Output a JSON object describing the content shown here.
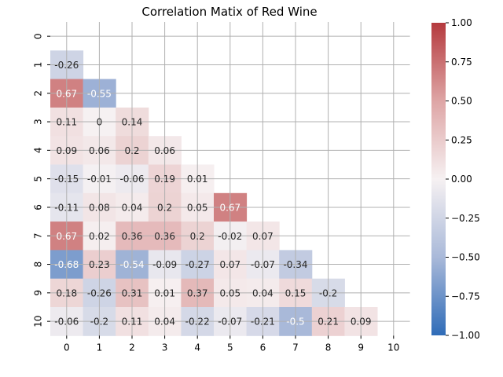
{
  "chart_data": {
    "type": "heatmap",
    "title": "Correlation Matix of Red Wine",
    "xlabel": "",
    "ylabel": "",
    "x_labels": [
      "0",
      "1",
      "2",
      "3",
      "4",
      "5",
      "6",
      "7",
      "8",
      "9",
      "10"
    ],
    "y_labels": [
      "0",
      "1",
      "2",
      "3",
      "4",
      "5",
      "6",
      "7",
      "8",
      "9",
      "10"
    ],
    "mask": "upper triangle including diagonal",
    "grid": true,
    "colormap": "vlag (blue-white-red)",
    "colorbar": {
      "min": -1.0,
      "max": 1.0,
      "ticks": [
        "−1.00",
        "−0.75",
        "−0.50",
        "−0.25",
        "0.00",
        "0.25",
        "0.50",
        "0.75",
        "1.00"
      ],
      "low_color": "#2f6cb8",
      "mid_color": "#f6f1f2",
      "high_color": "#b53a3e"
    },
    "rows": [
      [],
      [
        -0.26
      ],
      [
        0.67,
        -0.55
      ],
      [
        0.11,
        0,
        0.14
      ],
      [
        0.09,
        0.06,
        0.2,
        0.06
      ],
      [
        -0.15,
        -0.01,
        -0.06,
        0.19,
        0.01
      ],
      [
        -0.11,
        0.08,
        0.04,
        0.2,
        0.05,
        0.67
      ],
      [
        0.67,
        0.02,
        0.36,
        0.36,
        0.2,
        -0.02,
        0.07
      ],
      [
        -0.68,
        0.23,
        -0.54,
        -0.09,
        -0.27,
        0.07,
        -0.07,
        -0.34
      ],
      [
        0.18,
        -0.26,
        0.31,
        0.01,
        0.37,
        0.05,
        0.04,
        0.15,
        -0.2
      ],
      [
        -0.06,
        -0.2,
        0.11,
        0.04,
        -0.22,
        -0.07,
        -0.21,
        -0.5,
        0.21,
        0.09
      ]
    ]
  }
}
